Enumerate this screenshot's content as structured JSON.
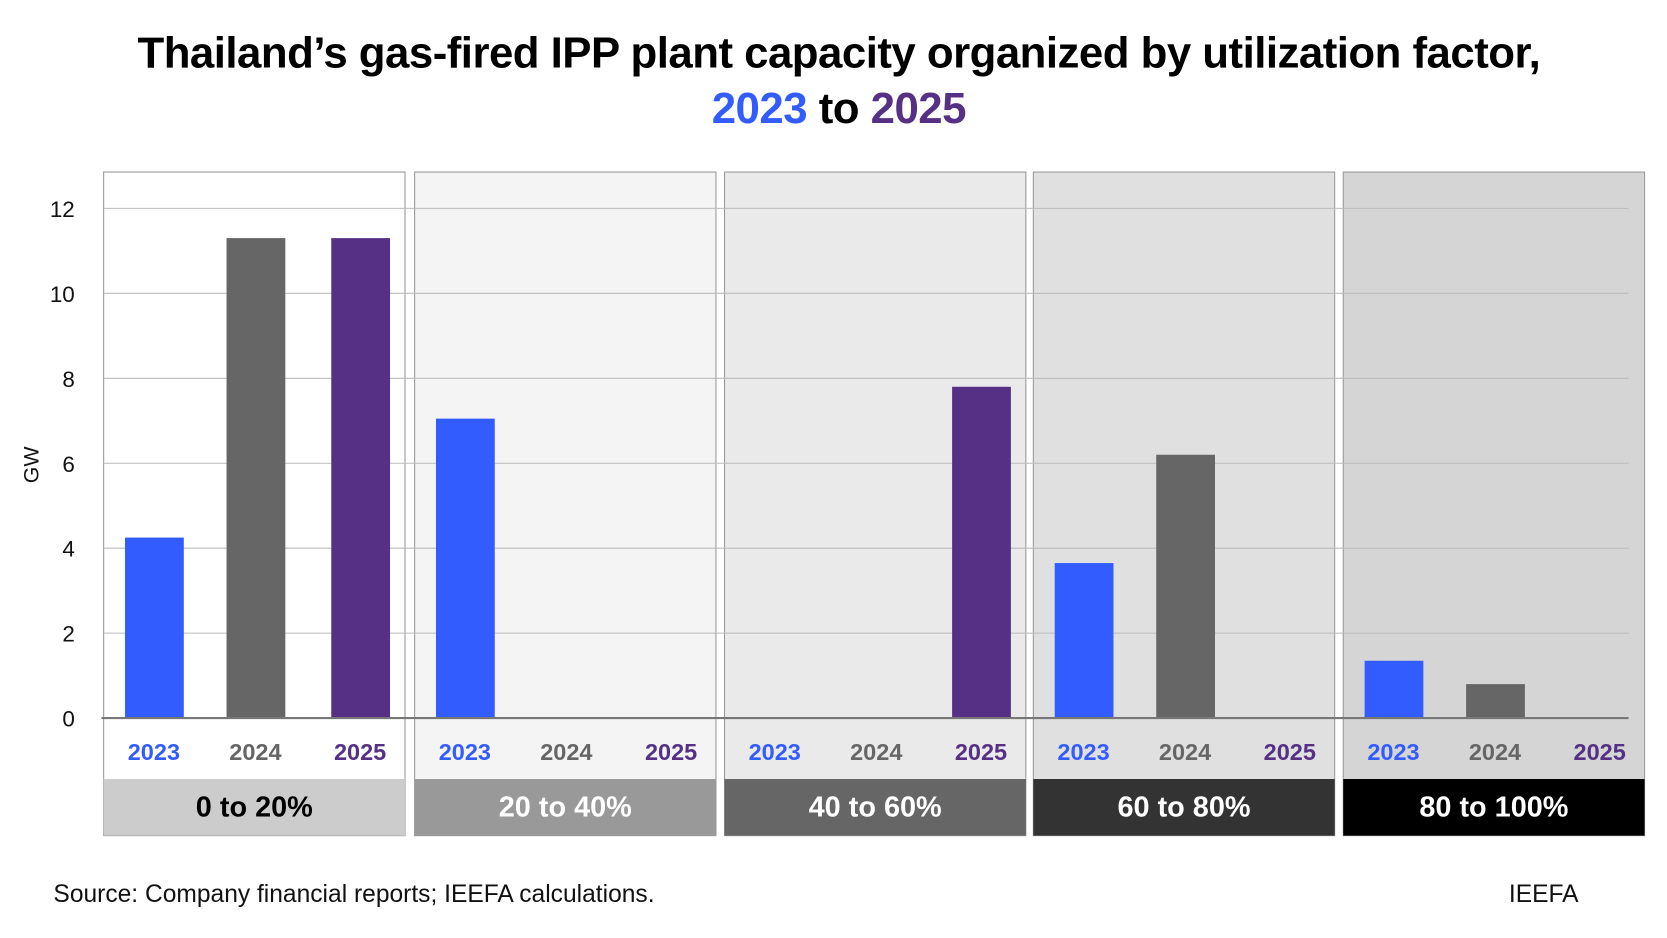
{
  "title": {
    "line1": "Thailand’s gas-fired IPP plant capacity organized by utilization factor,",
    "year_start": "2023",
    "connector": " to ",
    "year_end": "2025"
  },
  "source": "Source: Company financial reports; IEEFA calculations.",
  "brand": "IEEFA",
  "colors": {
    "2023": "#335CFF",
    "2024": "#666666",
    "2025": "#553085"
  },
  "chart_data": {
    "type": "bar",
    "title": "Thailand’s gas-fired IPP plant capacity organized by utilization factor, 2023 to 2025",
    "ylabel": "GW",
    "ylim": [
      0,
      12.8
    ],
    "yticks": [
      0,
      2,
      4,
      6,
      8,
      10,
      12
    ],
    "grid": true,
    "groups": [
      {
        "label": "0 to 20%",
        "panel_color": "#ffffff",
        "label_bg": "#cccccc",
        "label_color": "#000000",
        "values": {
          "2023": 4.25,
          "2024": 11.3,
          "2025": 11.3
        }
      },
      {
        "label": "20 to 40%",
        "panel_color": "#f4f4f4",
        "label_bg": "#999999",
        "label_color": "#ffffff",
        "values": {
          "2023": 7.05,
          "2024": 0,
          "2025": 0
        }
      },
      {
        "label": "40 to 60%",
        "panel_color": "#eaeaea",
        "label_bg": "#666666",
        "label_color": "#ffffff",
        "values": {
          "2023": 0,
          "2024": 0,
          "2025": 7.8
        }
      },
      {
        "label": "60 to 80%",
        "panel_color": "#e0e0e0",
        "label_bg": "#333333",
        "label_color": "#ffffff",
        "values": {
          "2023": 3.65,
          "2024": 6.2,
          "2025": 0
        }
      },
      {
        "label": "80 to 100%",
        "panel_color": "#d5d5d5",
        "label_bg": "#000000",
        "label_color": "#ffffff",
        "values": {
          "2023": 1.35,
          "2024": 0.8,
          "2025": 0
        }
      }
    ],
    "series": [
      "2023",
      "2024",
      "2025"
    ]
  }
}
